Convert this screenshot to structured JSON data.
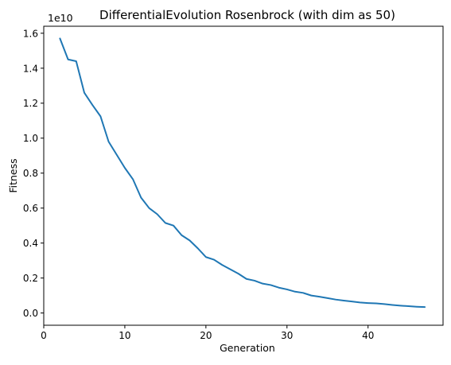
{
  "chart_data": {
    "type": "line",
    "title": "DifferentialEvolution Rosenbrock  (with dim as 50)",
    "xlabel": "Generation",
    "ylabel": "Fitness",
    "y_offset_text": "1e10",
    "xlim": [
      0,
      49.25
    ],
    "ylim": [
      -0.07,
      1.64
    ],
    "x_ticks": [
      0,
      10,
      20,
      30,
      40
    ],
    "x_tick_labels": [
      "0",
      "10",
      "20",
      "30",
      "40"
    ],
    "y_ticks": [
      0.0,
      0.2,
      0.4,
      0.6,
      0.8,
      1.0,
      1.2,
      1.4,
      1.6
    ],
    "y_tick_labels": [
      "0.0",
      "0.2",
      "0.4",
      "0.6",
      "0.8",
      "1.0",
      "1.2",
      "1.4",
      "1.6"
    ],
    "grid": false,
    "legend": "none",
    "series": [
      {
        "color": "#1f77b4",
        "x": [
          2,
          3,
          4,
          5,
          6,
          7,
          8,
          9,
          10,
          11,
          12,
          13,
          14,
          15,
          16,
          17,
          18,
          19,
          20,
          21,
          22,
          23,
          24,
          25,
          26,
          27,
          28,
          29,
          30,
          31,
          32,
          33,
          34,
          35,
          36,
          37,
          38,
          39,
          40,
          41,
          42,
          43,
          44,
          45,
          46,
          47
        ],
        "values": [
          1.57,
          1.45,
          1.44,
          1.26,
          1.19,
          1.125,
          0.98,
          0.905,
          0.83,
          0.765,
          0.66,
          0.6,
          0.565,
          0.515,
          0.5,
          0.445,
          0.415,
          0.37,
          0.32,
          0.305,
          0.275,
          0.25,
          0.225,
          0.195,
          0.185,
          0.168,
          0.16,
          0.145,
          0.135,
          0.122,
          0.115,
          0.1,
          0.093,
          0.085,
          0.077,
          0.071,
          0.066,
          0.06,
          0.057,
          0.055,
          0.051,
          0.046,
          0.042,
          0.039,
          0.036,
          0.034
        ]
      }
    ]
  }
}
